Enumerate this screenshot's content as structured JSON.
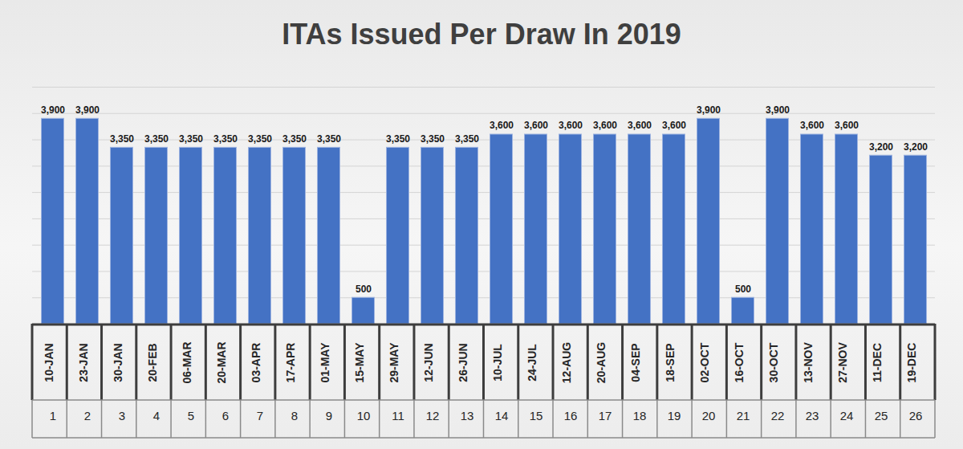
{
  "chart_data": {
    "type": "bar",
    "title": "ITAs Issued Per Draw In 2019",
    "categories": [
      "10-JAN",
      "23-JAN",
      "30-JAN",
      "20-FEB",
      "06-MAR",
      "20-MAR",
      "03-APR",
      "17-APR",
      "01-MAY",
      "15-MAY",
      "29-MAY",
      "12-JUN",
      "26-JUN",
      "10-JUL",
      "24-JUL",
      "12-AUG",
      "20-AUG",
      "04-SEP",
      "18-SEP",
      "02-OCT",
      "16-OCT",
      "30-OCT",
      "13-NOV",
      "27-NOV",
      "11-DEC",
      "19-DEC"
    ],
    "draw_numbers": [
      1,
      2,
      3,
      4,
      5,
      6,
      7,
      8,
      9,
      10,
      11,
      12,
      13,
      14,
      15,
      16,
      17,
      18,
      19,
      20,
      21,
      22,
      23,
      24,
      25,
      26
    ],
    "values": [
      3900,
      3900,
      3350,
      3350,
      3350,
      3350,
      3350,
      3350,
      3350,
      500,
      3350,
      3350,
      3350,
      3600,
      3600,
      3600,
      3600,
      3600,
      3600,
      3900,
      500,
      3900,
      3600,
      3600,
      3200,
      3200
    ],
    "value_labels": [
      "3,900",
      "3,900",
      "3,350",
      "3,350",
      "3,350",
      "3,350",
      "3,350",
      "3,350",
      "3,350",
      "500",
      "3,350",
      "3,350",
      "3,350",
      "3,600",
      "3,600",
      "3,600",
      "3,600",
      "3,600",
      "3,600",
      "3,900",
      "500",
      "3,900",
      "3,600",
      "3,600",
      "3,200",
      "3,200"
    ],
    "color": "#4472c4",
    "ylim": [
      0,
      4500
    ],
    "yticks": [
      0,
      500,
      1000,
      1500,
      2000,
      2500,
      3000,
      3500,
      4000,
      4500
    ],
    "grid": true,
    "data_labels": true,
    "tick_labels": "x"
  }
}
